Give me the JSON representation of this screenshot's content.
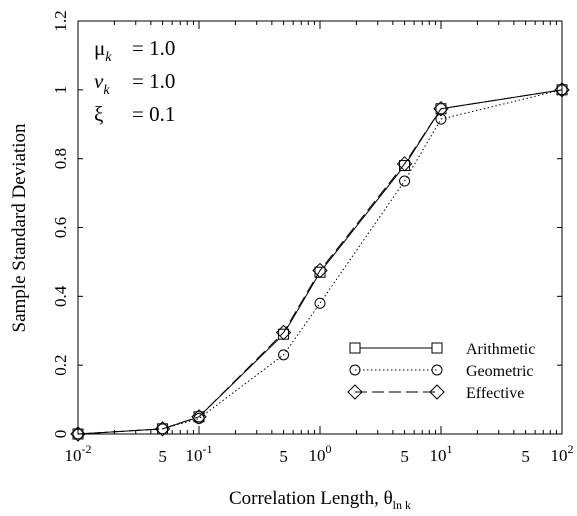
{
  "chart_data": {
    "type": "line",
    "xscale": "log",
    "xlim": [
      0.01,
      100
    ],
    "ylim": [
      0,
      1.2
    ],
    "xlabel": "Correlation Length, θ",
    "xlabel_sub": "ln k",
    "ylabel": "Sample Standard Deviation",
    "yticks": [
      "0",
      "0.2",
      "0.4",
      "0.6",
      "0.8",
      "1",
      "1.2"
    ],
    "xticks": [
      {
        "value": 0.01,
        "base": "10",
        "exp": "-2"
      },
      {
        "value": 0.1,
        "base": "10",
        "exp": "-1"
      },
      {
        "value": 1,
        "base": "10",
        "exp": "0"
      },
      {
        "value": 10,
        "base": "10",
        "exp": "1"
      },
      {
        "value": 100,
        "base": "10",
        "exp": "2"
      }
    ],
    "xminor": [
      {
        "value": 0.05,
        "label": "5"
      },
      {
        "value": 0.5,
        "label": "5"
      },
      {
        "value": 5,
        "label": "5"
      },
      {
        "value": 50,
        "label": "5"
      }
    ],
    "params": [
      {
        "sym": "μ",
        "sub": "k",
        "eq": "= 1.0"
      },
      {
        "sym": "v",
        "sub": "k",
        "eq": "= 1.0"
      },
      {
        "sym": "ξ",
        "sub": "",
        "eq": "= 0.1"
      }
    ],
    "legend_position": "lower-right",
    "x": [
      0.01,
      0.05,
      0.1,
      0.5,
      1,
      5,
      10,
      100
    ],
    "series": [
      {
        "name": "Arithmetic",
        "marker": "square",
        "dash": "solid",
        "values": [
          0.0,
          0.015,
          0.05,
          0.29,
          0.47,
          0.78,
          0.945,
          1.0
        ]
      },
      {
        "name": "Geometric",
        "marker": "circle",
        "dash": "dotted",
        "values": [
          0.0,
          0.015,
          0.045,
          0.23,
          0.38,
          0.735,
          0.915,
          1.0
        ]
      },
      {
        "name": "Effective",
        "marker": "diamond",
        "dash": "dashed",
        "values": [
          0.0,
          0.015,
          0.05,
          0.295,
          0.475,
          0.785,
          0.945,
          1.0
        ]
      }
    ]
  }
}
